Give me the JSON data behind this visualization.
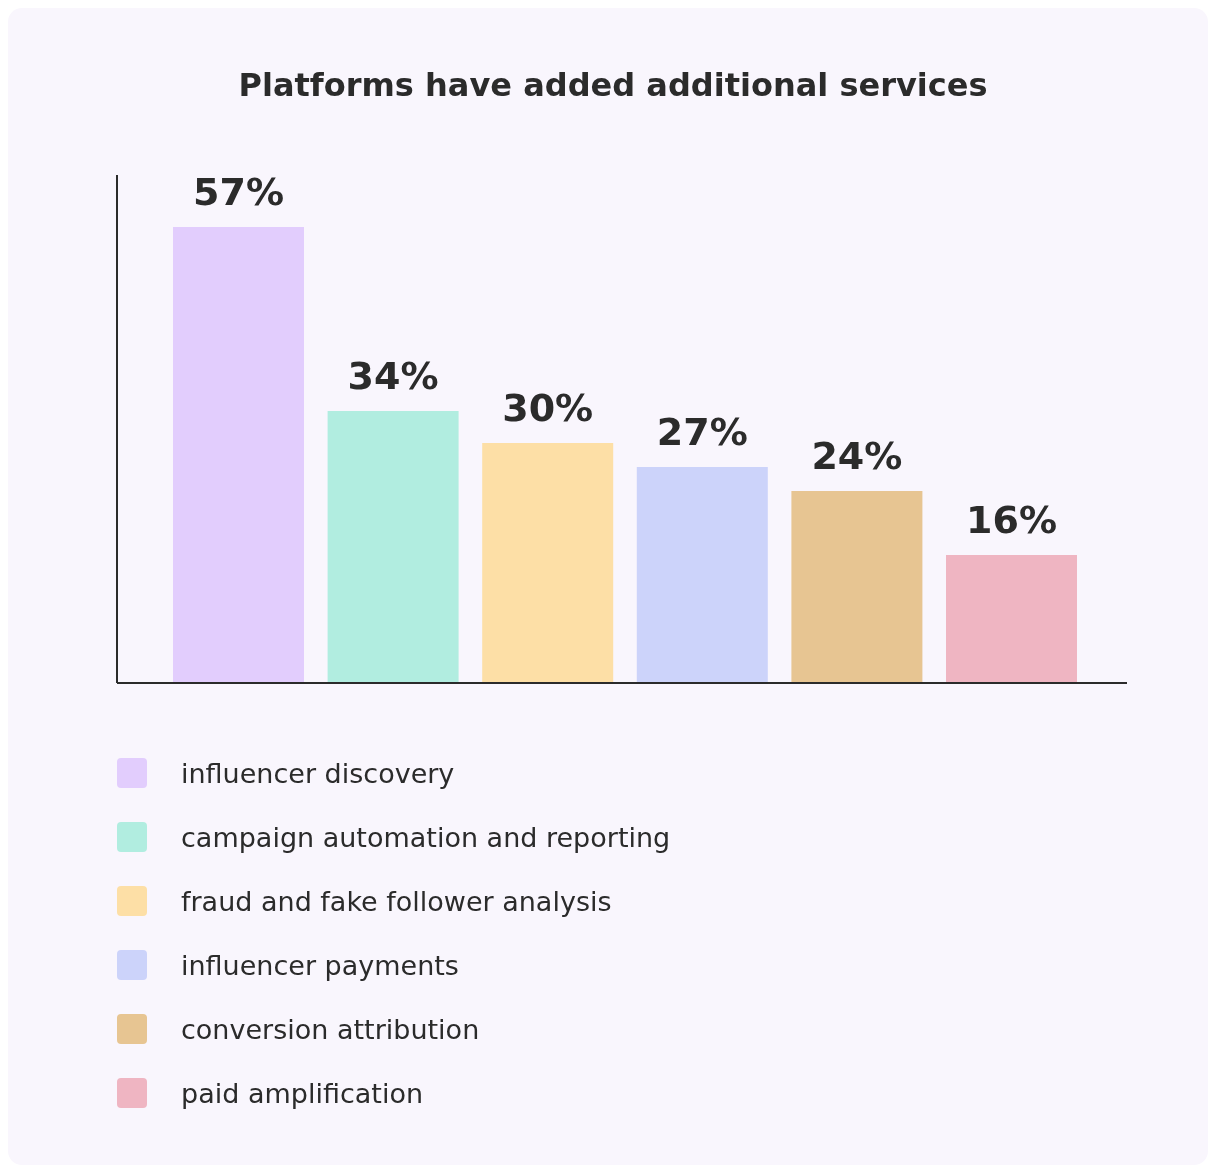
{
  "chart_data": {
    "type": "bar",
    "title": "Platforms have added additional services",
    "categories": [
      null
    ],
    "series": [
      {
        "name": "influencer discovery",
        "color": "#e2cdfd",
        "values": [
          57
        ],
        "value_labels": [
          "57%"
        ]
      },
      {
        "name": "campaign automation and reporting",
        "color": "#b1ede0",
        "values": [
          34
        ],
        "value_labels": [
          "34%"
        ]
      },
      {
        "name": "fraud and fake follower analysis",
        "color": "#fddfa6",
        "values": [
          30
        ],
        "value_labels": [
          "30%"
        ]
      },
      {
        "name": "influencer payments",
        "color": "#ccd3fa",
        "values": [
          27
        ],
        "value_labels": [
          "27%"
        ]
      },
      {
        "name": "conversion attribution",
        "color": "#e7c592",
        "values": [
          24
        ],
        "value_labels": [
          "24%"
        ]
      },
      {
        "name": "paid amplification",
        "color": "#efb5c2",
        "values": [
          16
        ],
        "value_labels": [
          "16%"
        ]
      }
    ],
    "ylim": [
      0,
      63.5
    ],
    "legend": "bottom"
  }
}
